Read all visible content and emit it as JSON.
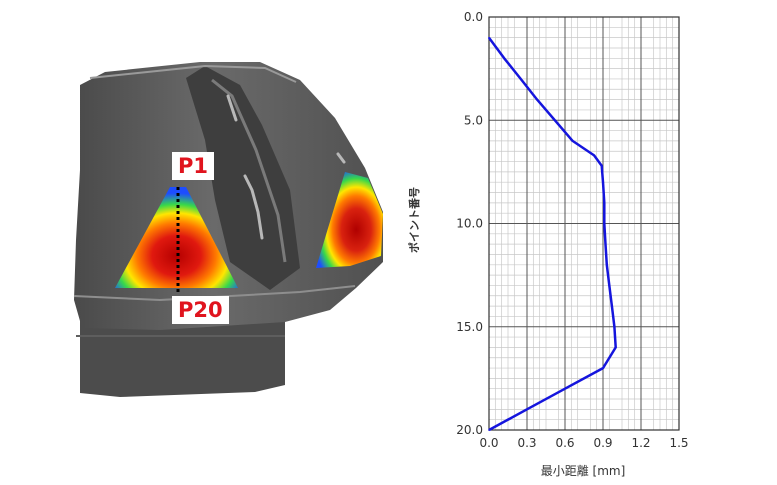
{
  "figure": {
    "callouts": {
      "top": "P1",
      "bottom": "P20"
    }
  },
  "chart_data": {
    "type": "line",
    "xlabel": "最小距離 [mm]",
    "ylabel": "ポイント番号",
    "xlim": [
      0,
      1.5
    ],
    "ylim": [
      20,
      0
    ],
    "y_inverted": true,
    "x_ticks": [
      "0.0",
      "0.3",
      "0.6",
      "0.9",
      "1.2",
      "1.5"
    ],
    "y_ticks": [
      "0.0",
      "5.0",
      "10.0",
      "15.0",
      "20.0"
    ],
    "grid": true,
    "series": [
      {
        "color": "#1515dd",
        "points": [
          [
            0.0,
            1.0
          ],
          [
            0.12,
            2.0
          ],
          [
            0.25,
            3.0
          ],
          [
            0.38,
            4.0
          ],
          [
            0.52,
            5.0
          ],
          [
            0.66,
            6.0
          ],
          [
            0.83,
            6.7
          ],
          [
            0.89,
            7.2
          ],
          [
            0.9,
            8.0
          ],
          [
            0.91,
            9.0
          ],
          [
            0.91,
            10.0
          ],
          [
            0.92,
            11.0
          ],
          [
            0.93,
            12.0
          ],
          [
            0.95,
            13.0
          ],
          [
            0.97,
            14.0
          ],
          [
            0.99,
            15.0
          ],
          [
            1.0,
            16.0
          ],
          [
            0.9,
            17.0
          ],
          [
            0.6,
            18.0
          ],
          [
            0.3,
            19.0
          ],
          [
            0.0,
            20.0
          ]
        ]
      }
    ]
  },
  "colors": {
    "line": "#1515dd",
    "callout_text": "#e0141e"
  }
}
